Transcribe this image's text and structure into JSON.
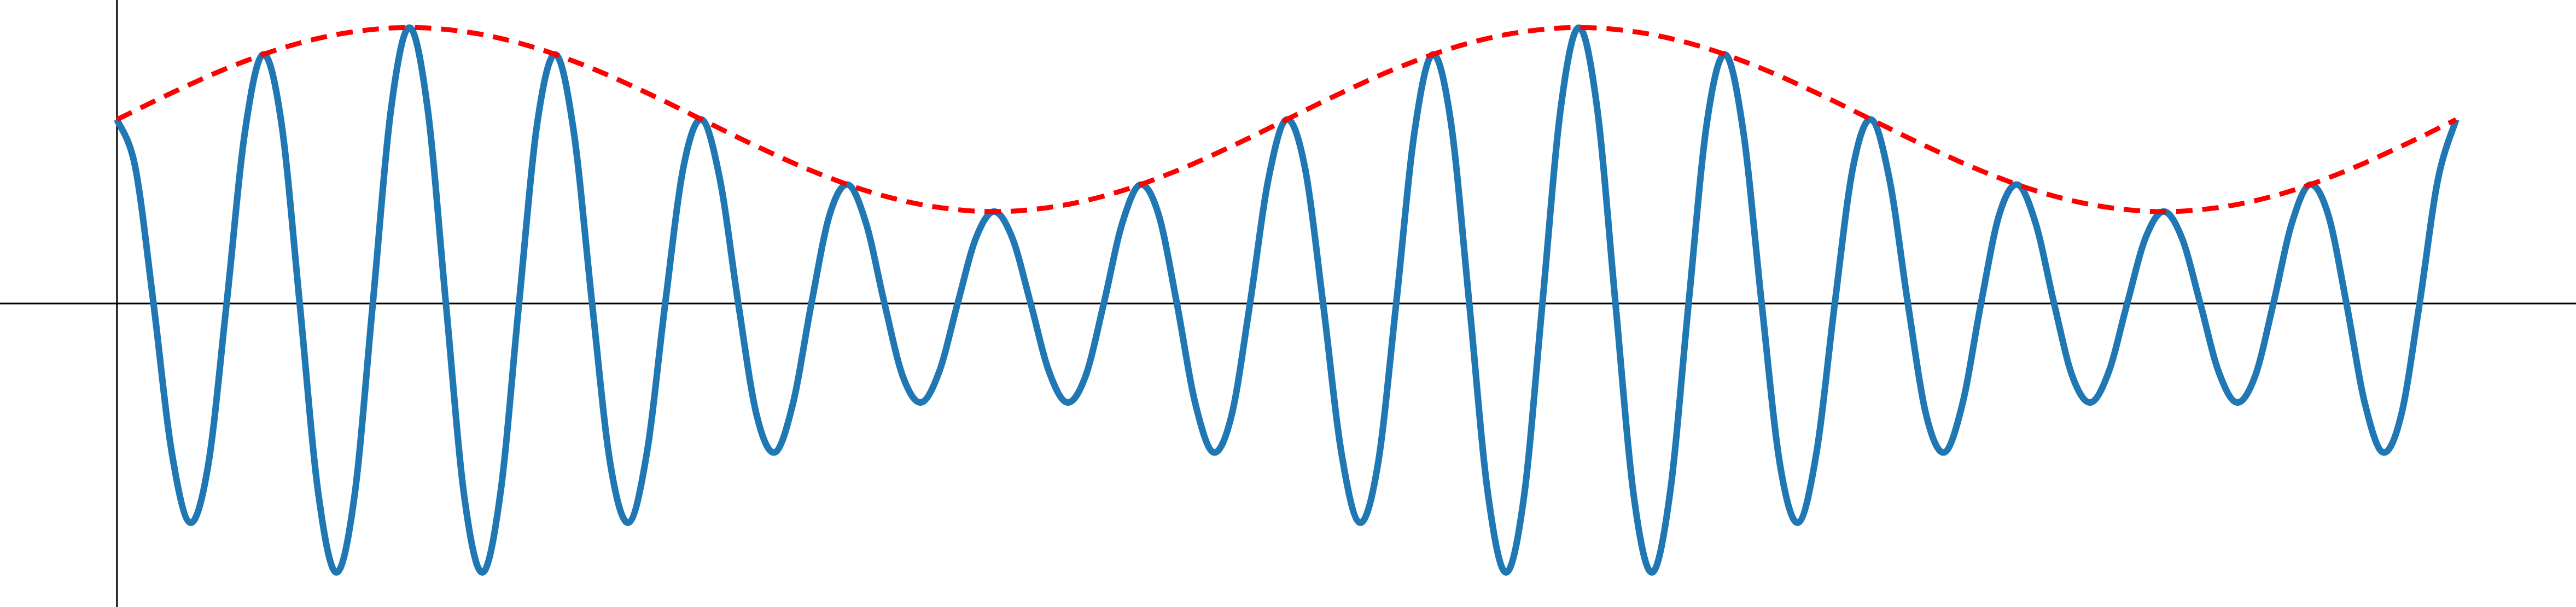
{
  "chart_data": {
    "type": "line",
    "x": [
      0,
      0.125,
      0.25,
      0.375,
      0.5,
      0.625,
      0.75,
      0.875,
      1,
      1.125,
      1.25,
      1.375,
      1.5,
      1.625,
      1.75,
      1.875,
      2,
      2.125,
      2.25,
      2.375,
      2.5,
      2.625,
      2.75,
      2.875,
      3,
      3.125,
      3.25,
      3.375,
      3.5,
      3.625,
      3.75,
      3.875,
      4,
      4.125,
      4.25,
      4.375,
      4.5,
      4.625,
      4.75,
      4.875,
      5,
      5.125,
      5.25,
      5.375,
      5.5,
      5.625,
      5.75,
      5.875,
      6,
      6.125,
      6.25,
      6.375,
      6.5,
      6.625,
      6.75,
      6.875,
      7,
      7.125,
      7.25,
      7.375,
      7.5,
      7.625,
      7.75,
      7.875,
      8,
      8.125,
      8.25,
      8.375,
      8.5,
      8.625,
      8.75,
      8.875,
      9,
      9.125,
      9.25,
      9.375,
      9.5,
      9.625,
      9.75,
      9.875,
      10,
      10.125,
      10.25,
      10.375,
      10.5,
      10.625,
      10.75,
      10.875,
      11,
      11.125,
      11.25,
      11.375,
      11.5,
      11.625,
      11.75,
      11.875,
      12,
      12.125,
      12.25,
      12.375,
      12.5,
      12.625,
      12.75,
      12.875,
      13,
      13.125,
      13.25,
      13.375,
      13.5,
      13.625,
      13.75,
      13.875,
      14,
      14.125,
      14.25,
      14.375,
      14.5,
      14.625,
      14.75,
      14.875,
      15,
      15.125,
      15.25,
      15.375,
      15.5,
      15.625,
      15.75,
      15.875,
      16
    ],
    "series": [
      {
        "color": "#1f77b4",
        "dashed": false,
        "values": [
          1.0,
          0.742,
          0,
          -0.81,
          -1.191,
          -0.874,
          0,
          0.931,
          1.354,
          0.981,
          0,
          -1.019,
          -1.462,
          -1.045,
          0,
          1.059,
          1.5,
          1.059,
          0,
          -1.045,
          -1.462,
          -1.019,
          0,
          0.981,
          1.354,
          0.931,
          0,
          -0.874,
          -1.191,
          -0.81,
          0,
          0.742,
          1.0,
          0.672,
          0,
          -0.605,
          -0.809,
          -0.54,
          0,
          0.483,
          0.646,
          0.433,
          0,
          -0.395,
          -0.538,
          -0.369,
          0,
          0.355,
          0.5,
          0.355,
          0,
          -0.369,
          -0.538,
          -0.395,
          0,
          0.433,
          0.646,
          0.483,
          0,
          -0.54,
          -0.809,
          -0.605,
          0,
          0.672,
          1.0,
          0.742,
          0,
          -0.81,
          -1.191,
          -0.874,
          0,
          0.931,
          1.354,
          0.981,
          0,
          -1.019,
          -1.462,
          -1.045,
          0,
          1.059,
          1.5,
          1.059,
          0,
          -1.045,
          -1.462,
          -1.019,
          0,
          0.981,
          1.354,
          0.931,
          0,
          -0.874,
          -1.191,
          -0.81,
          0,
          0.742,
          1.0,
          0.672,
          0,
          -0.605,
          -0.809,
          -0.54,
          0,
          0.483,
          0.646,
          0.433,
          0,
          -0.395,
          -0.538,
          -0.369,
          0,
          0.355,
          0.5,
          0.355,
          0,
          -0.369,
          -0.538,
          -0.395,
          0,
          0.433,
          0.646,
          0.483,
          0,
          -0.54,
          -0.809,
          -0.605,
          0,
          0.672,
          1.0
        ]
      },
      {
        "color": "#ff0000",
        "dashed": true,
        "values": [
          1.0,
          1.049,
          1.098,
          1.145,
          1.191,
          1.236,
          1.278,
          1.317,
          1.354,
          1.387,
          1.416,
          1.441,
          1.462,
          1.478,
          1.49,
          1.498,
          1.5,
          1.498,
          1.49,
          1.478,
          1.462,
          1.441,
          1.416,
          1.387,
          1.354,
          1.317,
          1.278,
          1.236,
          1.191,
          1.145,
          1.098,
          1.049,
          1.0,
          0.951,
          0.902,
          0.855,
          0.809,
          0.764,
          0.722,
          0.683,
          0.646,
          0.613,
          0.584,
          0.559,
          0.538,
          0.522,
          0.51,
          0.502,
          0.5,
          0.502,
          0.51,
          0.522,
          0.538,
          0.559,
          0.584,
          0.613,
          0.646,
          0.683,
          0.722,
          0.764,
          0.809,
          0.855,
          0.902,
          0.951,
          1.0,
          1.049,
          1.098,
          1.145,
          1.191,
          1.236,
          1.278,
          1.317,
          1.354,
          1.387,
          1.416,
          1.441,
          1.462,
          1.478,
          1.49,
          1.498,
          1.5,
          1.498,
          1.49,
          1.478,
          1.462,
          1.441,
          1.416,
          1.387,
          1.354,
          1.317,
          1.278,
          1.236,
          1.191,
          1.145,
          1.098,
          1.049,
          1.0,
          0.951,
          0.902,
          0.855,
          0.809,
          0.764,
          0.722,
          0.683,
          0.646,
          0.613,
          0.584,
          0.559,
          0.538,
          0.522,
          0.51,
          0.502,
          0.5,
          0.502,
          0.51,
          0.522,
          0.538,
          0.559,
          0.584,
          0.613,
          0.646,
          0.683,
          0.722,
          0.764,
          0.809,
          0.855,
          0.902,
          0.951,
          1.0
        ]
      }
    ],
    "xlim": [
      -0.8,
      16.82
    ],
    "ylim": [
      -1.65,
      1.65
    ]
  }
}
